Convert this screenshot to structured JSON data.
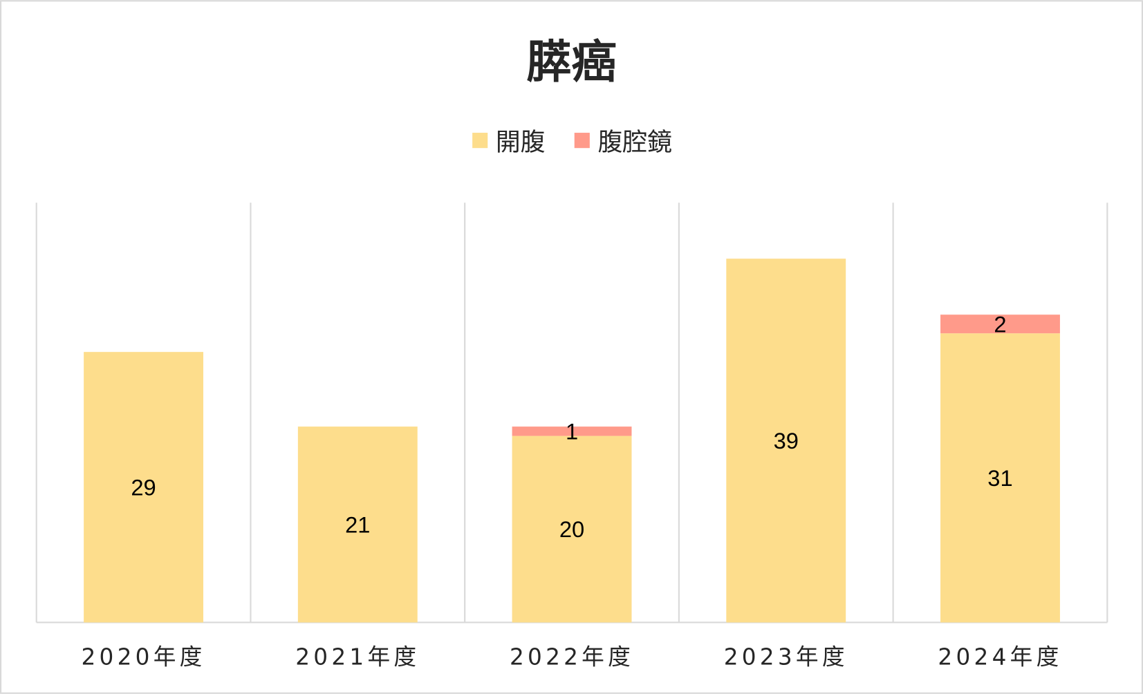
{
  "chart_data": {
    "type": "bar",
    "stacked": true,
    "title": "膵癌",
    "xlabel": "",
    "ylabel": "",
    "categories": [
      "2020年度",
      "2021年度",
      "2022年度",
      "2023年度",
      "2024年度"
    ],
    "series": [
      {
        "name": "開腹",
        "values": [
          29,
          21,
          20,
          39,
          31
        ],
        "color": "#FDDD8C"
      },
      {
        "name": "腹腔鏡",
        "values": [
          0,
          0,
          1,
          0,
          2
        ],
        "color": "#FF9A8A"
      }
    ],
    "ylim": [
      0,
      45
    ],
    "grid": "vertical category separators",
    "legend_position": "top",
    "colors": {
      "frame": "#D9D9D9",
      "text": "#262626"
    }
  }
}
